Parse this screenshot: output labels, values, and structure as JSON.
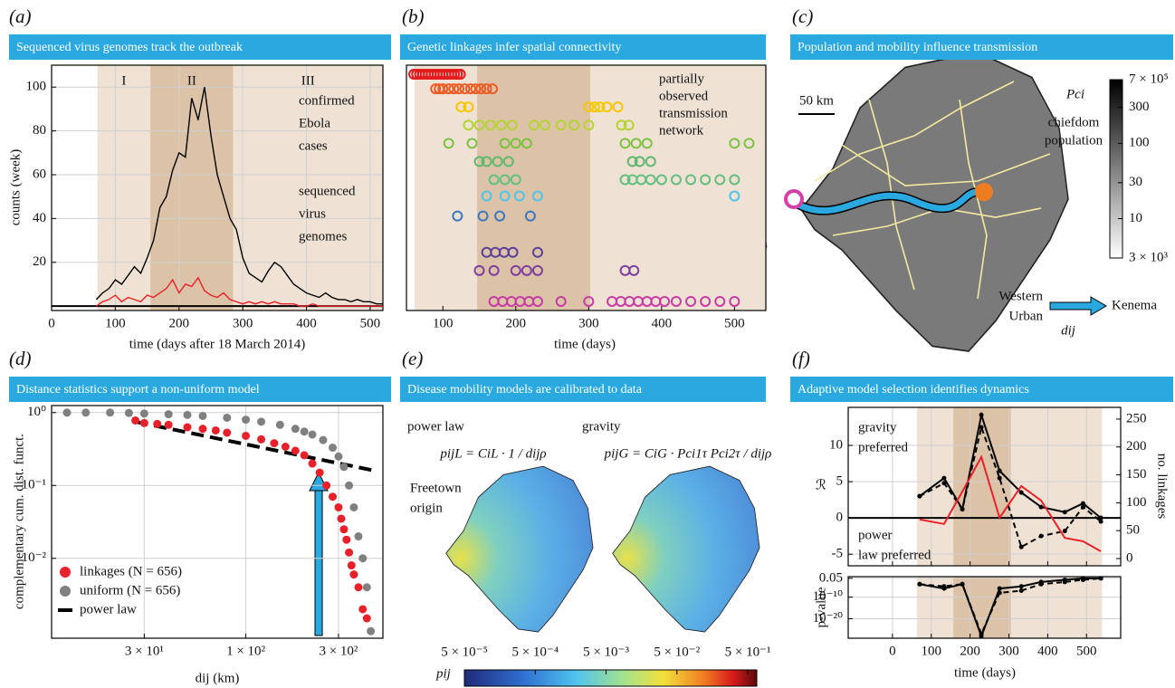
{
  "chart_data": [
    {
      "type": "line",
      "panel_label": "(a)",
      "title": "Sequenced virus genomes track the outbreak",
      "xlabel": "time (days after 18 March 2014)",
      "ylabel": "counts (week)",
      "xlim": [
        0,
        520
      ],
      "ylim": [
        -2,
        110
      ],
      "xticks": [
        0,
        100,
        200,
        300,
        400,
        500
      ],
      "yticks": [
        20,
        40,
        60,
        80,
        100
      ],
      "grid": true,
      "phases": [
        {
          "label": "I",
          "start": 72,
          "end": 155,
          "color": "#efe2d4"
        },
        {
          "label": "II",
          "start": 155,
          "end": 285,
          "color": "#dcc3a8"
        },
        {
          "label": "III",
          "start": 285,
          "end": 520,
          "color": "#efe2d4"
        }
      ],
      "x": [
        70,
        80,
        90,
        100,
        110,
        120,
        130,
        140,
        150,
        160,
        170,
        180,
        190,
        200,
        210,
        220,
        230,
        240,
        250,
        260,
        270,
        280,
        290,
        300,
        310,
        320,
        330,
        340,
        350,
        360,
        370,
        380,
        390,
        400,
        410,
        420,
        430,
        440,
        450,
        460,
        470,
        480,
        490,
        500,
        510,
        520
      ],
      "series": [
        {
          "name": [
            "confirmed",
            "Ebola",
            "cases"
          ],
          "color": "#000000",
          "values": [
            3,
            6,
            8,
            12,
            10,
            14,
            18,
            15,
            22,
            30,
            45,
            50,
            62,
            70,
            68,
            95,
            85,
            100,
            78,
            60,
            50,
            40,
            35,
            22,
            15,
            13,
            11,
            16,
            20,
            18,
            14,
            10,
            8,
            6,
            5,
            4,
            6,
            4,
            3,
            3,
            2,
            3,
            2,
            2,
            1,
            1
          ]
        },
        {
          "name": [
            "sequenced",
            "virus",
            "genomes"
          ],
          "color": "#e8202a",
          "values": [
            0,
            2,
            3,
            5,
            2,
            4,
            3,
            2,
            5,
            4,
            6,
            8,
            12,
            6,
            10,
            9,
            13,
            7,
            5,
            4,
            6,
            3,
            2,
            1,
            2,
            1,
            2,
            1,
            2,
            1,
            1,
            1,
            0,
            0,
            1,
            0,
            0,
            0,
            0,
            0,
            0,
            0,
            0,
            0,
            0,
            0
          ]
        }
      ]
    },
    {
      "type": "scatter",
      "panel_label": "(b)",
      "title": "Genetic linkages infer spatial connectivity",
      "xlabel": "time (days)",
      "annotation": [
        "partially",
        "observed",
        "transmission",
        "network"
      ],
      "xlim": [
        50,
        543
      ],
      "ylim": [
        0,
        13.5
      ],
      "xticks": [
        100,
        200,
        300,
        400,
        500
      ],
      "marker": "open",
      "shading": [
        {
          "start": 61,
          "end": 543,
          "color": "#efe2d4"
        },
        {
          "start": 147,
          "end": 302,
          "color": "#dcc3a8"
        }
      ],
      "series": [
        {
          "color": "#e41a1c",
          "y": 13,
          "x": [
            60,
            64,
            68,
            72,
            76,
            80,
            84,
            88,
            92,
            96,
            100,
            104,
            108,
            112,
            116,
            120,
            124
          ]
        },
        {
          "color": "#ee5a24",
          "y": 12.2,
          "x": [
            90,
            95,
            100,
            108,
            115,
            122,
            130,
            138,
            145,
            152,
            160,
            168
          ]
        },
        {
          "color": "#f6c700",
          "y": 11.2,
          "x": [
            125,
            135,
            300,
            308,
            315,
            325,
            340
          ]
        },
        {
          "color": "#b5d334",
          "y": 10.2,
          "x": [
            135,
            150,
            165,
            180,
            195,
            225,
            240,
            262,
            280,
            300,
            345,
            355
          ]
        },
        {
          "color": "#7cc242",
          "y": 9.2,
          "x": [
            108,
            140,
            185,
            200,
            215,
            350,
            365,
            380,
            500,
            520
          ]
        },
        {
          "color": "#5fb86e",
          "y": 8.2,
          "x": [
            150,
            160,
            175,
            190,
            360,
            370,
            385
          ]
        },
        {
          "color": "#63bf7f",
          "y": 7.2,
          "x": [
            170,
            185,
            200,
            350,
            360,
            372,
            385,
            400,
            420,
            440,
            460,
            480,
            500
          ]
        },
        {
          "color": "#4fc3e8",
          "y": 6.3,
          "x": [
            160,
            185,
            205,
            230,
            500
          ]
        },
        {
          "color": "#3b78c2",
          "y": 5.2,
          "x": [
            120,
            155,
            178,
            220
          ]
        },
        {
          "color": "#5b3f9a",
          "y": 3.2,
          "x": [
            160,
            172,
            184,
            196,
            230
          ]
        },
        {
          "color": "#7e3ea0",
          "y": 2.2,
          "x": [
            150,
            170,
            200,
            215,
            230,
            350,
            362
          ]
        },
        {
          "color": "#c63ca4",
          "y": 0.5,
          "x": [
            170,
            182,
            194,
            206,
            218,
            230,
            262,
            300,
            332,
            344,
            356,
            368,
            380,
            392,
            404,
            420,
            440,
            460,
            480,
            500
          ]
        }
      ]
    },
    {
      "type": "map",
      "panel_label": "(c)",
      "title": "Population and mobility influence transmission",
      "scale_bar": "50 km",
      "colorbar_label": "Pci",
      "colorbar_title": [
        "chiefdom",
        "population"
      ],
      "clim": [
        3000,
        700000
      ],
      "log": true,
      "cticks": [
        {
          "value": 700000,
          "label": "7 × 10⁵"
        },
        {
          "value": 300000,
          "label": "300"
        },
        {
          "value": 100000,
          "label": "100"
        },
        {
          "value": 30000,
          "label": "30"
        },
        {
          "value": 10000,
          "label": "10"
        },
        {
          "value": 3000,
          "label": "3 × 10³"
        }
      ],
      "origin": [
        "Western",
        "Urban"
      ],
      "destination": "Kenema",
      "arrow_label": "dij"
    },
    {
      "type": "scatter",
      "panel_label": "(d)",
      "title": "Distance statistics support a non-uniform model",
      "xlabel": "dij (km)",
      "ylabel": "complementary cum. dist. funct.",
      "log_x": true,
      "log_y": true,
      "xlim": [
        10,
        508
      ],
      "ylim": [
        0.0008,
        1.25
      ],
      "xticks": [
        {
          "value": 30,
          "label": "3 × 10¹"
        },
        {
          "value": 100,
          "label": "1 × 10²"
        },
        {
          "value": 300,
          "label": "3 × 10²"
        }
      ],
      "yticks": [
        {
          "value": 1,
          "label": "10⁰"
        },
        {
          "value": 0.1,
          "label": "10⁻¹"
        },
        {
          "value": 0.01,
          "label": "10⁻²"
        }
      ],
      "grid": true,
      "legend": "lower left",
      "series": [
        {
          "name": "linkages (N = 656)",
          "color": "#e8202a",
          "x": [
            27,
            30,
            35,
            40,
            50,
            60,
            70,
            80,
            100,
            120,
            140,
            160,
            180,
            200,
            220,
            240,
            260,
            280,
            300,
            310,
            320,
            330,
            340,
            350,
            360,
            380,
            400,
            420
          ],
          "values": [
            0.78,
            0.72,
            0.7,
            0.68,
            0.63,
            0.6,
            0.57,
            0.53,
            0.48,
            0.43,
            0.38,
            0.34,
            0.3,
            0.26,
            0.2,
            0.15,
            0.1,
            0.07,
            0.05,
            0.035,
            0.025,
            0.018,
            0.012,
            0.008,
            0.006,
            0.004,
            0.002,
            0.0015
          ]
        },
        {
          "name": "uniform  (N = 656)",
          "color": "#808080",
          "x": [
            12,
            15,
            20,
            25,
            30,
            40,
            50,
            60,
            80,
            100,
            120,
            150,
            180,
            200,
            220,
            250,
            280,
            300,
            320,
            340,
            360,
            380,
            400,
            420,
            440
          ],
          "values": [
            1,
            1,
            1,
            0.99,
            0.97,
            0.95,
            0.93,
            0.9,
            0.85,
            0.8,
            0.75,
            0.68,
            0.6,
            0.55,
            0.5,
            0.42,
            0.33,
            0.25,
            0.18,
            0.1,
            0.05,
            0.02,
            0.01,
            0.004,
            0.001
          ]
        },
        {
          "name": "power law",
          "color": "#000000",
          "style": "dashed",
          "x": [
            27,
            458
          ],
          "values": [
            0.75,
            0.16
          ]
        }
      ]
    },
    {
      "type": "map",
      "panel_label": "(e)",
      "title": "Disease mobility models are calibrated to data",
      "maps": [
        {
          "title": "power law",
          "formula": "pijL = CiL · 1 / dijρ"
        },
        {
          "title": "gravity",
          "formula": "pijG = CiG · Pci1τ Pci2τ / dijρ"
        }
      ],
      "origin": [
        "Freetown",
        "origin"
      ],
      "colorbar_label": "pij",
      "clim": [
        5e-05,
        0.67
      ],
      "log": true,
      "cticks": [
        {
          "value": 5e-05,
          "label": "5 × 10⁻⁵"
        },
        {
          "value": 0.0005,
          "label": "5 × 10⁻⁴"
        },
        {
          "value": 0.005,
          "label": "5 × 10⁻³"
        },
        {
          "value": 0.05,
          "label": "5 × 10⁻²"
        },
        {
          "value": 0.5,
          "label": "5 × 10⁻¹"
        }
      ]
    },
    {
      "type": "line",
      "panel_label": "(f)",
      "title": "Adaptive model selection identifies dynamics",
      "ylabel": "ℛ",
      "y2label": "no. linkages",
      "xlim": [
        -114,
        588
      ],
      "ylim": [
        -6.6,
        15.25
      ],
      "yticks": [
        -5,
        0,
        5,
        10
      ],
      "y2lim": [
        -13,
        271
      ],
      "y2ticks": [
        0,
        50,
        100,
        150,
        200,
        250
      ],
      "grid": true,
      "annotations": [
        [
          "gravity",
          "preferred"
        ],
        [
          "power",
          "law preferred"
        ]
      ],
      "shading": [
        {
          "start": 63,
          "end": 540,
          "color": "#efe2d4"
        },
        {
          "start": 157,
          "end": 305,
          "color": "#dcc3a8"
        }
      ],
      "x": [
        70,
        133,
        180,
        229,
        276,
        332,
        383,
        444,
        491,
        537
      ],
      "series": [
        {
          "color": "#000000",
          "style": "solid",
          "values": [
            3,
            5.5,
            1.2,
            14.2,
            6.5,
            3.5,
            1.5,
            0.8,
            2,
            0
          ]
        },
        {
          "color": "#000000",
          "style": "dashed",
          "values": [
            3,
            4.8,
            1.2,
            12.5,
            5.5,
            -4,
            -2.5,
            -1.8,
            1.5,
            -0.5
          ]
        },
        {
          "color": "#e8202a",
          "style": "solid",
          "axis": "y2",
          "values": [
            70,
            62,
            120,
            182,
            73,
            130,
            104,
            37,
            31,
            13
          ]
        }
      ]
    },
    {
      "type": "line",
      "xlabel": "time (days)",
      "ylabel": "p-value",
      "log_y": true,
      "grid": true,
      "xlim": [
        -114,
        588
      ],
      "ylim": [
        1e-29,
        0.3
      ],
      "xticks": [
        0,
        100,
        200,
        300,
        400,
        500
      ],
      "yticks": [
        0.05,
        {
          "value": 1e-10,
          "label": "10⁻¹⁰"
        },
        {
          "value": 1e-20,
          "label": "10⁻²⁰"
        }
      ],
      "shading": [
        {
          "start": 63,
          "end": 540,
          "color": "#efe2d4"
        },
        {
          "start": 157,
          "end": 305,
          "color": "#dcc3a8"
        }
      ],
      "x": [
        70,
        133,
        180,
        229,
        276,
        332,
        383,
        444,
        491,
        537
      ],
      "series": [
        {
          "color": "#000000",
          "style": "solid",
          "values": [
            0.0001,
            1e-06,
            0.0001,
            1e-28,
            1e-06,
            1e-05,
            0.001,
            0.01,
            0.05,
            0.05
          ]
        },
        {
          "color": "#000000",
          "style": "dashed",
          "values": [
            0.0001,
            1e-05,
            0.0001,
            1e-27,
            1e-08,
            1e-07,
            0.0001,
            0.001,
            0.01,
            0.05
          ]
        }
      ]
    }
  ]
}
